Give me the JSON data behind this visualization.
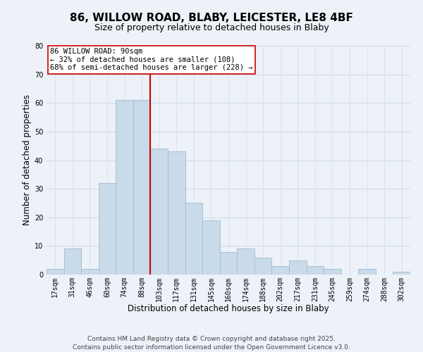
{
  "title": "86, WILLOW ROAD, BLABY, LEICESTER, LE8 4BF",
  "subtitle": "Size of property relative to detached houses in Blaby",
  "xlabel": "Distribution of detached houses by size in Blaby",
  "ylabel": "Number of detached properties",
  "bar_labels": [
    "17sqm",
    "31sqm",
    "46sqm",
    "60sqm",
    "74sqm",
    "88sqm",
    "103sqm",
    "117sqm",
    "131sqm",
    "145sqm",
    "160sqm",
    "174sqm",
    "188sqm",
    "202sqm",
    "217sqm",
    "231sqm",
    "245sqm",
    "259sqm",
    "274sqm",
    "288sqm",
    "302sqm"
  ],
  "bar_values": [
    2,
    9,
    2,
    32,
    61,
    61,
    44,
    43,
    25,
    19,
    8,
    9,
    6,
    3,
    5,
    3,
    2,
    0,
    2,
    0,
    1
  ],
  "bar_color": "#c9daea",
  "bar_edge_color": "#a8c0d4",
  "grid_color": "#d0dcea",
  "background_color": "#edf1f8",
  "vline_x": 5.5,
  "vline_color": "#cc0000",
  "annotation_title": "86 WILLOW ROAD: 90sqm",
  "annotation_line1": "← 32% of detached houses are smaller (108)",
  "annotation_line2": "68% of semi-detached houses are larger (228) →",
  "annotation_box_color": "#ffffff",
  "annotation_box_edge": "#cc0000",
  "footer1": "Contains HM Land Registry data © Crown copyright and database right 2025.",
  "footer2": "Contains public sector information licensed under the Open Government Licence v3.0.",
  "ylim": [
    0,
    80
  ],
  "title_fontsize": 11,
  "subtitle_fontsize": 9,
  "axis_label_fontsize": 8.5,
  "tick_fontsize": 7,
  "annotation_fontsize": 7.5,
  "footer_fontsize": 6.5
}
